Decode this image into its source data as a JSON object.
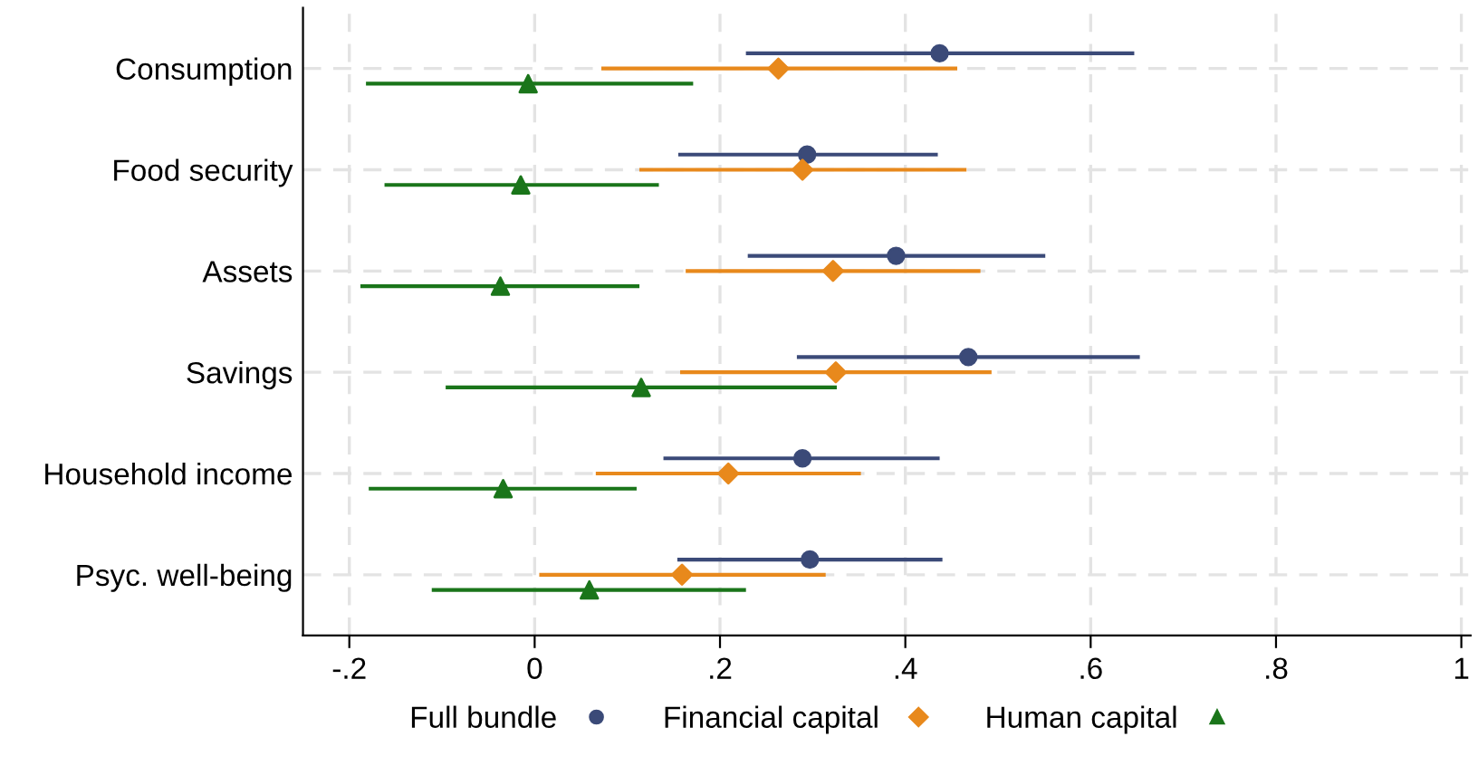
{
  "chart_data": {
    "type": "scatter",
    "orientation": "horizontal",
    "categories": [
      "Consumption",
      "Food security",
      "Assets",
      "Savings",
      "Household income",
      "Psyc. well-being"
    ],
    "series": [
      {
        "name": "Full bundle",
        "color": "#3b4a78",
        "marker": "circle",
        "values": [
          0.437,
          0.294,
          0.39,
          0.468,
          0.289,
          0.297
        ],
        "errors": [
          [
            0.23,
            0.645
          ],
          [
            0.157,
            0.433
          ],
          [
            0.232,
            0.549
          ],
          [
            0.285,
            0.651
          ],
          [
            0.141,
            0.435
          ],
          [
            0.156,
            0.438
          ]
        ]
      },
      {
        "name": "Financial capital",
        "color": "#e8891c",
        "marker": "diamond",
        "values": [
          0.263,
          0.289,
          0.322,
          0.325,
          0.209,
          0.159
        ],
        "errors": [
          [
            0.074,
            0.454
          ],
          [
            0.115,
            0.464
          ],
          [
            0.165,
            0.479
          ],
          [
            0.159,
            0.491
          ],
          [
            0.068,
            0.35
          ],
          [
            0.007,
            0.312
          ]
        ]
      },
      {
        "name": "Human capital",
        "color": "#1a751a",
        "marker": "triangle",
        "values": [
          -0.007,
          -0.015,
          -0.037,
          0.115,
          -0.034,
          0.059
        ],
        "errors": [
          [
            -0.18,
            0.169
          ],
          [
            -0.16,
            0.132
          ],
          [
            -0.186,
            0.111
          ],
          [
            -0.094,
            0.324
          ],
          [
            -0.177,
            0.108
          ],
          [
            -0.109,
            0.226
          ]
        ]
      }
    ],
    "xlim": [
      -0.25,
      1.01
    ],
    "xticks": [
      {
        "value": -0.2,
        "label": "-.2"
      },
      0,
      {
        "value": 0.2,
        "label": ".2"
      },
      {
        "value": 0.4,
        "label": ".4"
      },
      {
        "value": 0.6,
        "label": ".6"
      },
      {
        "value": 0.8,
        "label": ".8"
      },
      1
    ],
    "grid": true,
    "legend": "bottom"
  }
}
